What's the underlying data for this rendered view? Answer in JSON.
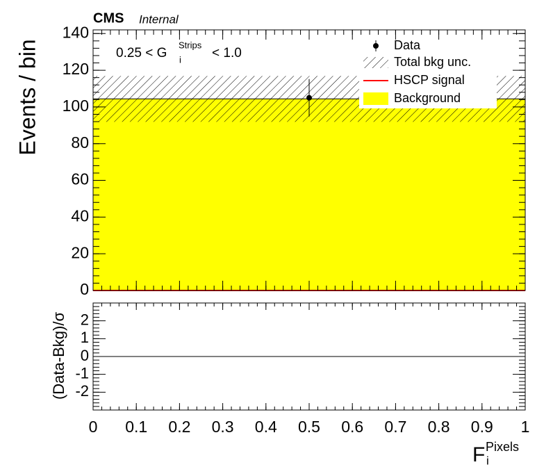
{
  "chart_data": [
    {
      "type": "histogram",
      "cms_label": "CMS",
      "cms_sublabel": "Internal",
      "y_label": "Events / bin",
      "annotation": {
        "pre": "0.25 < G",
        "sup": "Strips",
        "sub": "i",
        "post": "< 1.0"
      },
      "bins": [
        0,
        1
      ],
      "background": [
        104.4
      ],
      "bkg_unc": [
        12.5
      ],
      "signal": [
        0
      ],
      "x": [
        0.5
      ],
      "values": [
        105
      ],
      "errors": [
        10.2
      ],
      "legend": [
        "Data",
        "Total bkg unc.",
        "HSCP signal",
        "Background"
      ],
      "background_color": "#ffff00",
      "signal_color": "#ff0000",
      "data_color": "#000000",
      "xlim": [
        0,
        1
      ],
      "xticks": [
        0,
        0.1,
        0.2,
        0.3,
        0.4,
        0.5,
        0.6,
        0.7,
        0.8,
        0.9,
        1
      ],
      "ylim": [
        0,
        142
      ],
      "yticks": [
        0,
        20,
        40,
        60,
        80,
        100,
        120,
        140
      ]
    },
    {
      "type": "ratio",
      "y_label": "(Data-Bkg)/σ",
      "x_label": {
        "base": "F",
        "sup": "Pixels",
        "sub": "i"
      },
      "xlim": [
        0,
        1
      ],
      "xticks": [
        0,
        0.1,
        0.2,
        0.3,
        0.4,
        0.5,
        0.6,
        0.7,
        0.8,
        0.9,
        1
      ],
      "ylim": [
        -3,
        3
      ],
      "yticks": [
        -2,
        -1,
        0,
        1,
        2
      ]
    }
  ]
}
